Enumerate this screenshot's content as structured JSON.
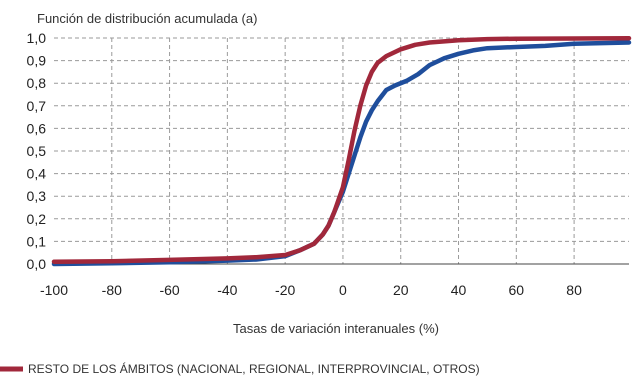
{
  "chart_data": {
    "type": "line",
    "title": "",
    "ylabel": "Función de distribución acumulada (a)",
    "xlabel": "Tasas de variación interanuales (%)",
    "xlim": [
      -100,
      99
    ],
    "ylim": [
      0,
      1
    ],
    "x_ticks": [
      "-100",
      "-80",
      "-60",
      "-40",
      "-20",
      "0",
      "20",
      "40",
      "60",
      "80"
    ],
    "y_ticks": [
      "0,0",
      "0,1",
      "0,2",
      "0,3",
      "0,4",
      "0,5",
      "0,6",
      "0,7",
      "0,8",
      "0,9",
      "1,0"
    ],
    "grid": "dashed",
    "legend_position": "bottom",
    "series": [
      {
        "name": "",
        "color": "#1f4e9c",
        "points": [
          [
            -100,
            0.0
          ],
          [
            -80,
            0.003
          ],
          [
            -60,
            0.008
          ],
          [
            -40,
            0.015
          ],
          [
            -30,
            0.02
          ],
          [
            -20,
            0.035
          ],
          [
            -15,
            0.06
          ],
          [
            -10,
            0.09
          ],
          [
            -7,
            0.13
          ],
          [
            -5,
            0.17
          ],
          [
            -3,
            0.23
          ],
          [
            0,
            0.32
          ],
          [
            2,
            0.4
          ],
          [
            4,
            0.48
          ],
          [
            6,
            0.56
          ],
          [
            8,
            0.63
          ],
          [
            10,
            0.68
          ],
          [
            12,
            0.72
          ],
          [
            15,
            0.77
          ],
          [
            18,
            0.79
          ],
          [
            22,
            0.81
          ],
          [
            26,
            0.84
          ],
          [
            30,
            0.88
          ],
          [
            35,
            0.91
          ],
          [
            40,
            0.93
          ],
          [
            45,
            0.945
          ],
          [
            50,
            0.955
          ],
          [
            60,
            0.96
          ],
          [
            70,
            0.965
          ],
          [
            80,
            0.975
          ],
          [
            99,
            0.98
          ]
        ]
      },
      {
        "name": "RESTO DE LOS ÁMBITOS (NACIONAL, REGIONAL, INTERPROVINCIAL, OTROS)",
        "color": "#a1283b",
        "points": [
          [
            -100,
            0.01
          ],
          [
            -80,
            0.012
          ],
          [
            -60,
            0.018
          ],
          [
            -40,
            0.025
          ],
          [
            -30,
            0.03
          ],
          [
            -20,
            0.04
          ],
          [
            -15,
            0.06
          ],
          [
            -10,
            0.09
          ],
          [
            -7,
            0.13
          ],
          [
            -5,
            0.17
          ],
          [
            -3,
            0.23
          ],
          [
            0,
            0.34
          ],
          [
            2,
            0.46
          ],
          [
            4,
            0.59
          ],
          [
            6,
            0.7
          ],
          [
            8,
            0.79
          ],
          [
            10,
            0.85
          ],
          [
            12,
            0.89
          ],
          [
            15,
            0.92
          ],
          [
            20,
            0.95
          ],
          [
            25,
            0.97
          ],
          [
            30,
            0.98
          ],
          [
            40,
            0.99
          ],
          [
            50,
            0.995
          ],
          [
            60,
            0.997
          ],
          [
            80,
            0.998
          ],
          [
            99,
            0.999
          ]
        ]
      }
    ]
  }
}
